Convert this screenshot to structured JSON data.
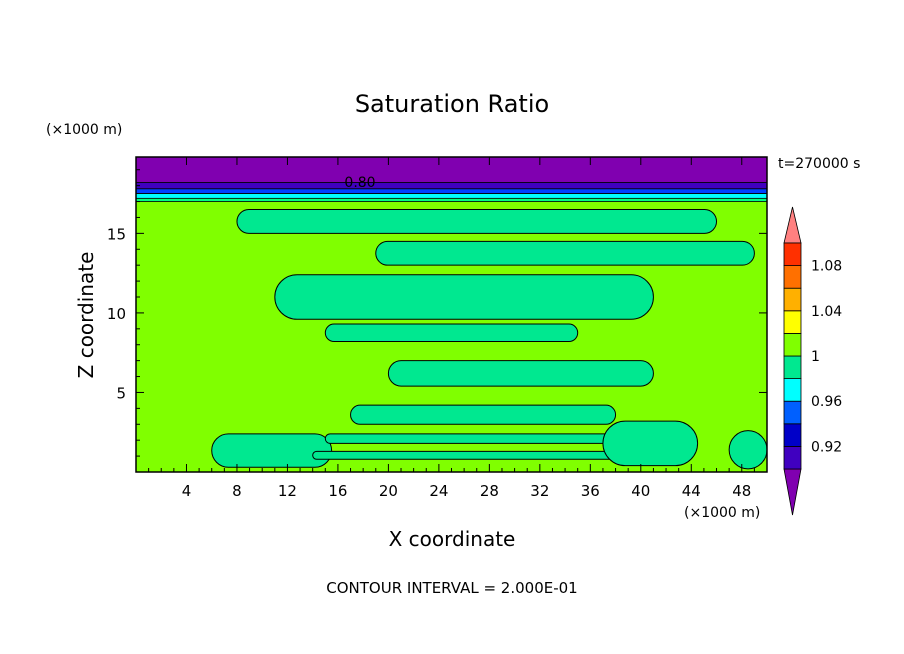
{
  "chart_data": {
    "type": "contour",
    "title": "Saturation Ratio",
    "xlabel": "X coordinate",
    "ylabel": "Z coordinate",
    "x_unit": "(×1000 m)",
    "y_unit": "(×1000 m)",
    "xlim": [
      0,
      50
    ],
    "ylim": [
      0,
      19.8
    ],
    "x_ticks": [
      4,
      8,
      12,
      16,
      20,
      24,
      28,
      32,
      36,
      40,
      44,
      48
    ],
    "y_ticks": [
      5,
      10,
      15
    ],
    "time_label": "t=270000 s",
    "contour_label": "0.80",
    "footer": "CONTOUR INTERVAL = 2.000E-01",
    "background_level": {
      "range": [
        1.0,
        1.02
      ],
      "color": "#80ff00"
    },
    "top_bands": [
      {
        "z_from": 18.2,
        "z_to": 19.8,
        "color": "#8000b0"
      },
      {
        "z_from": 17.8,
        "z_to": 18.2,
        "color": "#4000c0"
      },
      {
        "z_from": 17.5,
        "z_to": 17.8,
        "color": "#0040ff"
      },
      {
        "z_from": 17.2,
        "z_to": 17.5,
        "color": "#00ffff"
      },
      {
        "z_from": 17.0,
        "z_to": 17.2,
        "color": "#00ff80"
      }
    ],
    "regions_below_1": [
      {
        "name": "lower-left-blob",
        "x": [
          6,
          15.5
        ],
        "z": [
          0.3,
          2.4
        ],
        "color": "#00e890"
      },
      {
        "name": "band-z1",
        "x": [
          14,
          38.5
        ],
        "z": [
          0.8,
          1.3
        ],
        "color": "#00e890"
      },
      {
        "name": "band-z2",
        "x": [
          15,
          37.5
        ],
        "z": [
          1.8,
          2.4
        ],
        "color": "#00e890"
      },
      {
        "name": "band-z3",
        "x": [
          17,
          38
        ],
        "z": [
          3,
          4.2
        ],
        "color": "#00e890"
      },
      {
        "name": "right-lower-blob",
        "x": [
          37,
          44.5
        ],
        "z": [
          0.4,
          3.2
        ],
        "color": "#00e890"
      },
      {
        "name": "corner-right-blob",
        "x": [
          47,
          50
        ],
        "z": [
          0.2,
          2.6
        ],
        "color": "#00e890"
      },
      {
        "name": "band-z6",
        "x": [
          20,
          41
        ],
        "z": [
          5.4,
          7.0
        ],
        "color": "#00e890"
      },
      {
        "name": "band-z9",
        "x": [
          15,
          35
        ],
        "z": [
          8.2,
          9.3
        ],
        "color": "#00e890"
      },
      {
        "name": "band-z11",
        "x": [
          11,
          41
        ],
        "z": [
          9.6,
          12.4
        ],
        "color": "#00e890"
      },
      {
        "name": "band-z14",
        "x": [
          19,
          49
        ],
        "z": [
          13.0,
          14.5
        ],
        "color": "#00e890"
      },
      {
        "name": "band-z15",
        "x": [
          8,
          46
        ],
        "z": [
          15.0,
          16.5
        ],
        "color": "#00e890"
      }
    ],
    "colorbar": {
      "levels": [
        0.92,
        0.96,
        1,
        1.04,
        1.08
      ],
      "tick_labels": [
        "0.92",
        "0.96",
        "1",
        "1.04",
        "1.08"
      ],
      "colors": [
        "#8000b0",
        "#4000c0",
        "#0000c8",
        "#0060ff",
        "#00ffff",
        "#00e890",
        "#80ff00",
        "#ffff00",
        "#ffb000",
        "#ff7000",
        "#ff3000",
        "#ff8080"
      ]
    }
  }
}
